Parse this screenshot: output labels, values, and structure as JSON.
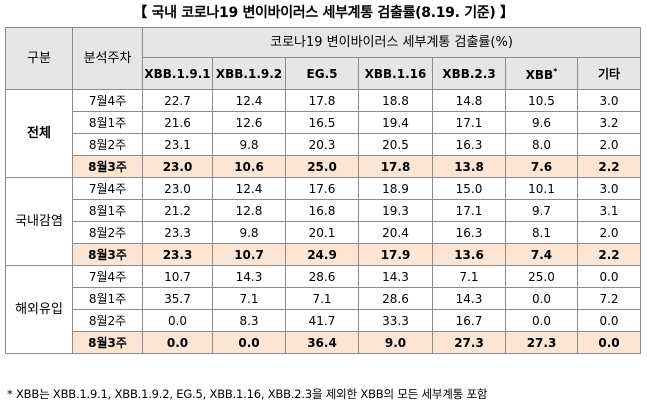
{
  "title": "【 국내 코로나19 변이바이러스 세부계통 검출률(8.19. 기준) 】",
  "header": {
    "col_group": "구분",
    "col_week": "분석주차",
    "main_header": "코로나19 변이바이러스 세부계통 검출률(%)",
    "variants": [
      "XBB.1.9.1",
      "XBB.1.9.2",
      "EG.5",
      "XBB.1.16",
      "XBB.2.3",
      "XBB",
      "기타"
    ],
    "xbb_mark": "*"
  },
  "groups": [
    {
      "name": "전체",
      "rows": [
        {
          "week": "7월4주",
          "values": [
            "22.7",
            "12.4",
            "17.8",
            "18.8",
            "14.8",
            "10.5",
            "3.0"
          ]
        },
        {
          "week": "8월1주",
          "values": [
            "21.6",
            "12.6",
            "16.5",
            "19.4",
            "17.1",
            "9.6",
            "3.2"
          ]
        },
        {
          "week": "8월2주",
          "values": [
            "23.1",
            "9.8",
            "20.3",
            "20.5",
            "16.3",
            "8.0",
            "2.0"
          ]
        },
        {
          "week": "8월3주",
          "values": [
            "23.0",
            "10.6",
            "25.0",
            "17.8",
            "13.8",
            "7.6",
            "2.2"
          ],
          "highlight": true
        }
      ]
    },
    {
      "name": "국내감염",
      "rows": [
        {
          "week": "7월4주",
          "values": [
            "23.0",
            "12.4",
            "17.6",
            "18.9",
            "15.0",
            "10.1",
            "3.0"
          ]
        },
        {
          "week": "8월1주",
          "values": [
            "21.2",
            "12.8",
            "16.8",
            "19.3",
            "17.1",
            "9.7",
            "3.1"
          ]
        },
        {
          "week": "8월2주",
          "values": [
            "23.3",
            "9.8",
            "20.1",
            "20.4",
            "16.3",
            "8.1",
            "2.0"
          ]
        },
        {
          "week": "8월3주",
          "values": [
            "23.3",
            "10.7",
            "24.9",
            "17.9",
            "13.6",
            "7.4",
            "2.2"
          ],
          "highlight": true
        }
      ]
    },
    {
      "name": "해외유입",
      "rows": [
        {
          "week": "7월4주",
          "values": [
            "10.7",
            "14.3",
            "28.6",
            "14.3",
            "7.1",
            "25.0",
            "0.0"
          ]
        },
        {
          "week": "8월1주",
          "values": [
            "35.7",
            "7.1",
            "7.1",
            "28.6",
            "14.3",
            "0.0",
            "7.2"
          ]
        },
        {
          "week": "8월2주",
          "values": [
            "0.0",
            "8.3",
            "41.7",
            "33.3",
            "16.7",
            "0.0",
            "0.0"
          ]
        },
        {
          "week": "8월3주",
          "values": [
            "0.0",
            "0.0",
            "36.4",
            "9.0",
            "27.3",
            "27.3",
            "0.0"
          ],
          "highlight": true
        }
      ]
    }
  ],
  "footnote": "* XBB는 XBB.1.9.1, XBB.1.9.2, EG.5, XBB.1.16, XBB.2.3을 제외한 XBB의 모든 세부계통 포함"
}
